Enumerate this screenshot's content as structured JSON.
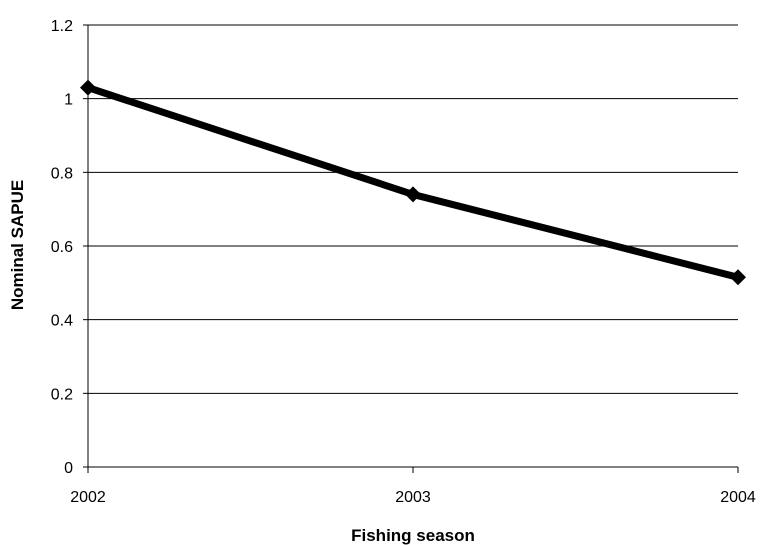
{
  "chart_data": {
    "type": "line",
    "title": "",
    "xlabel": "Fishing season",
    "ylabel": "Nominal SAPUE",
    "x": [
      "2002",
      "2003",
      "2004"
    ],
    "series": [
      {
        "values": [
          1.03,
          0.74,
          0.515
        ],
        "color": "#000000",
        "marker": "diamond"
      }
    ],
    "ylim": [
      0,
      1.2
    ],
    "yticks": [
      "0",
      "0.2",
      "0.4",
      "0.6",
      "0.8",
      "1",
      "1.2"
    ],
    "grid": "horizontal",
    "legend": "none"
  }
}
